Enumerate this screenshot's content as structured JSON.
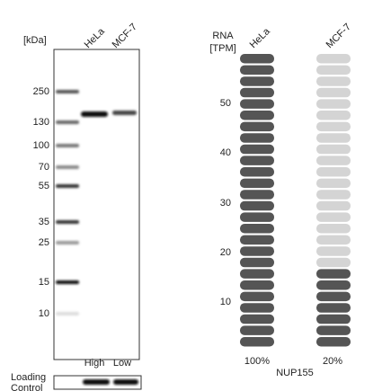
{
  "blot": {
    "unit_label": "[kDa]",
    "lanes": [
      "HeLa",
      "MCF-7"
    ],
    "markers": [
      "250",
      "130",
      "100",
      "70",
      "55",
      "35",
      "25",
      "15",
      "10"
    ],
    "expression": [
      "High",
      "Low"
    ],
    "loading_control": [
      "Loading",
      "Control"
    ]
  },
  "rna": {
    "axis_label": [
      "RNA",
      "[TPM]"
    ],
    "lanes": [
      "HeLa",
      "MCF-7"
    ],
    "ticks": [
      "50",
      "40",
      "30",
      "20",
      "10"
    ],
    "percentages": [
      "100%",
      "20%"
    ],
    "gene": "NUP155"
  }
}
